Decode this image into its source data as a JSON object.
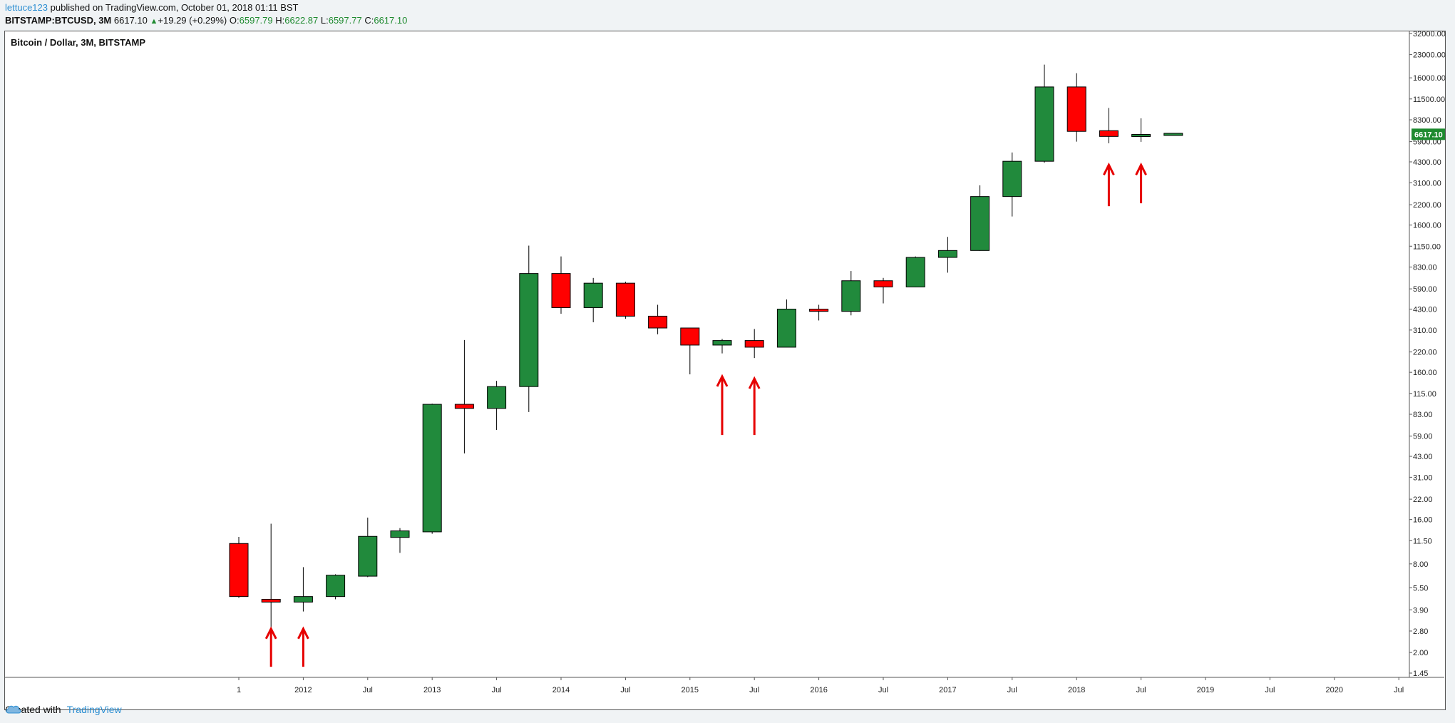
{
  "header": {
    "user": "lettuce123",
    "published_text": "published on TradingView.com, October 01, 2018 01:11 BST",
    "symbol": "BITSTAMP:BTCUSD, 3M",
    "last": "6617.10",
    "change_arrow": "▲",
    "change": "+19.29 (+0.29%)",
    "o_label": "O:",
    "o_value": "6597.79",
    "h_label": "H:",
    "h_value": "6622.87",
    "l_label": "L:",
    "l_value": "6597.77",
    "c_label": "C:",
    "c_value": "6617.10"
  },
  "footer": {
    "created_with": "Created with",
    "brand": "TradingView"
  },
  "colors": {
    "up": "#218a3c",
    "down": "#ff0000",
    "wick": "#000000",
    "arrow": "#e60000",
    "last_badge": "#1e8a2f"
  },
  "chart_data": {
    "type": "candlestick",
    "title": "Bitcoin / Dollar, 3M, BITSTAMP",
    "y_scale": "log",
    "ylim": [
      1.3,
      32000
    ],
    "y_ticks": [
      "32000.00",
      "23000.00",
      "16000.00",
      "11500.00",
      "8300.00",
      "5900.00",
      "4300.00",
      "3100.00",
      "2200.00",
      "1600.00",
      "1150.00",
      "830.00",
      "590.00",
      "430.00",
      "310.00",
      "220.00",
      "160.00",
      "115.00",
      "83.00",
      "59.00",
      "43.00",
      "31.00",
      "22.00",
      "16.00",
      "11.50",
      "8.00",
      "5.50",
      "3.90",
      "2.80",
      "2.00",
      "1.45"
    ],
    "x_ticks": [
      {
        "label": "1",
        "q": 0
      },
      {
        "label": "2012",
        "q": 2
      },
      {
        "label": "Jul",
        "q": 4
      },
      {
        "label": "2013",
        "q": 6
      },
      {
        "label": "Jul",
        "q": 8
      },
      {
        "label": "2014",
        "q": 10
      },
      {
        "label": "Jul",
        "q": 12
      },
      {
        "label": "2015",
        "q": 14
      },
      {
        "label": "Jul",
        "q": 16
      },
      {
        "label": "2016",
        "q": 18
      },
      {
        "label": "Jul",
        "q": 20
      },
      {
        "label": "2017",
        "q": 22
      },
      {
        "label": "Jul",
        "q": 24
      },
      {
        "label": "2018",
        "q": 26
      },
      {
        "label": "Jul",
        "q": 28
      },
      {
        "label": "2019",
        "q": 30
      },
      {
        "label": "Jul",
        "q": 32
      },
      {
        "label": "2020",
        "q": 34
      },
      {
        "label": "Jul",
        "q": 36
      }
    ],
    "candles": [
      {
        "period": "2011 Q3",
        "o": 11.0,
        "h": 12.2,
        "l": 4.7,
        "c": 4.8
      },
      {
        "period": "2011 Q4",
        "o": 4.6,
        "h": 15.0,
        "l": 2.2,
        "c": 4.4
      },
      {
        "period": "2012 Q1",
        "o": 4.4,
        "h": 7.6,
        "l": 3.8,
        "c": 4.8
      },
      {
        "period": "2012 Q2",
        "o": 4.8,
        "h": 6.8,
        "l": 4.6,
        "c": 6.7
      },
      {
        "period": "2012 Q3",
        "o": 6.6,
        "h": 16.5,
        "l": 6.5,
        "c": 12.3
      },
      {
        "period": "2012 Q4",
        "o": 12.1,
        "h": 14.0,
        "l": 9.5,
        "c": 13.4
      },
      {
        "period": "2013 Q1",
        "o": 13.2,
        "h": 98.0,
        "l": 12.8,
        "c": 97.0
      },
      {
        "period": "2013 Q2",
        "o": 97.0,
        "h": 265.0,
        "l": 45.0,
        "c": 91.0
      },
      {
        "period": "2013 Q3",
        "o": 91.0,
        "h": 140.0,
        "l": 65.0,
        "c": 128.0
      },
      {
        "period": "2013 Q4",
        "o": 128.0,
        "h": 1160.0,
        "l": 86.0,
        "c": 750.0
      },
      {
        "period": "2014 Q1",
        "o": 750.0,
        "h": 980.0,
        "l": 400.0,
        "c": 440.0
      },
      {
        "period": "2014 Q2",
        "o": 440.0,
        "h": 700.0,
        "l": 350.0,
        "c": 645.0
      },
      {
        "period": "2014 Q3",
        "o": 645.0,
        "h": 660.0,
        "l": 370.0,
        "c": 385.0
      },
      {
        "period": "2014 Q4",
        "o": 385.0,
        "h": 460.0,
        "l": 290.0,
        "c": 320.0
      },
      {
        "period": "2015 Q1",
        "o": 320.0,
        "h": 320.0,
        "l": 155.0,
        "c": 245.0
      },
      {
        "period": "2015 Q2",
        "o": 245.0,
        "h": 270.0,
        "l": 215.0,
        "c": 263.0
      },
      {
        "period": "2015 Q3",
        "o": 263.0,
        "h": 315.0,
        "l": 200.0,
        "c": 237.0
      },
      {
        "period": "2015 Q4",
        "o": 237.0,
        "h": 500.0,
        "l": 237.0,
        "c": 430.0
      },
      {
        "period": "2016 Q1",
        "o": 430.0,
        "h": 460.0,
        "l": 360.0,
        "c": 415.0
      },
      {
        "period": "2016 Q2",
        "o": 415.0,
        "h": 780.0,
        "l": 390.0,
        "c": 670.0
      },
      {
        "period": "2016 Q3",
        "o": 670.0,
        "h": 700.0,
        "l": 470.0,
        "c": 608.0
      },
      {
        "period": "2016 Q4",
        "o": 608.0,
        "h": 980.0,
        "l": 606.0,
        "c": 965.0
      },
      {
        "period": "2017 Q1",
        "o": 965.0,
        "h": 1330.0,
        "l": 760.0,
        "c": 1075.0
      },
      {
        "period": "2017 Q2",
        "o": 1075.0,
        "h": 2980.0,
        "l": 1070.0,
        "c": 2500.0
      },
      {
        "period": "2017 Q3",
        "o": 2500.0,
        "h": 4980.0,
        "l": 1830.0,
        "c": 4340.0
      },
      {
        "period": "2017 Q4",
        "o": 4340.0,
        "h": 19666.0,
        "l": 4240.0,
        "c": 13880.0
      },
      {
        "period": "2018 Q1",
        "o": 13880.0,
        "h": 17200.0,
        "l": 5900.0,
        "c": 6928.0
      },
      {
        "period": "2018 Q2",
        "o": 7000.0,
        "h": 9990.0,
        "l": 5750.0,
        "c": 6400.0
      },
      {
        "period": "2018 Q3",
        "o": 6390.0,
        "h": 8500.0,
        "l": 5880.0,
        "c": 6600.0
      },
      {
        "period": "2018 Q4",
        "o": 6597.79,
        "h": 6622.87,
        "l": 6597.77,
        "c": 6617.1
      }
    ],
    "last_value": "6617.10",
    "annotations": [
      {
        "type": "arrow-up",
        "q": 1,
        "from": 1.6,
        "to": 2.9
      },
      {
        "type": "arrow-up",
        "q": 2,
        "from": 1.6,
        "to": 2.9
      },
      {
        "type": "arrow-up",
        "q": 15,
        "from": 60,
        "to": 150
      },
      {
        "type": "arrow-up",
        "q": 16,
        "from": 60,
        "to": 145
      },
      {
        "type": "arrow-up",
        "q": 27,
        "from": 2150,
        "to": 4100
      },
      {
        "type": "arrow-up",
        "q": 28,
        "from": 2250,
        "to": 4100
      }
    ]
  }
}
